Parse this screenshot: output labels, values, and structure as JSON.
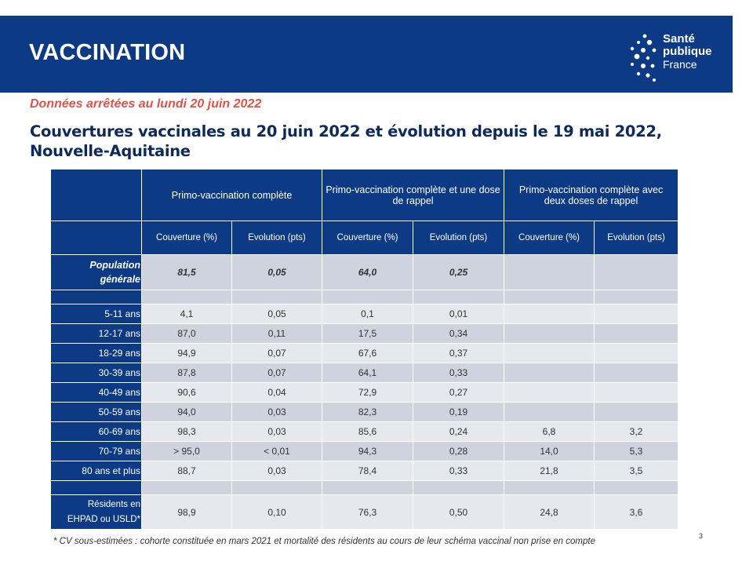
{
  "header": {
    "title": "VACCINATION",
    "logo": {
      "line1": "Santé",
      "line2": "publique",
      "line3": "France",
      "colors": {
        "background": "#0d3a84",
        "text": "#ffffff"
      }
    }
  },
  "date_note": "Données arrêtées au lundi 20 juin 2022",
  "heading_line1": "Couvertures vaccinales au 20 juin 2022 et évolution depuis le 19 mai 2022,",
  "heading_line2": "Nouvelle-Aquitaine",
  "table": {
    "group_headers": [
      "Primo-vaccination complète",
      "Primo-vaccination complète et une dose de rappel",
      "Primo-vaccination complète avec deux doses de rappel"
    ],
    "sub_headers": [
      "Couverture (%)",
      "Evolution (pts)",
      "Couverture (%)",
      "Evolution (pts)",
      "Couverture (%)",
      "Evolution (pts)"
    ],
    "general": {
      "label_line1": "Population",
      "label_line2": "générale",
      "values": [
        "81,5",
        "0,05",
        "64,0",
        "0,25",
        "",
        ""
      ]
    },
    "age_rows": [
      {
        "label": "5-11 ans",
        "values": [
          "4,1",
          "0,05",
          "0,1",
          "0,01",
          "",
          ""
        ]
      },
      {
        "label": "12-17 ans",
        "values": [
          "87,0",
          "0,11",
          "17,5",
          "0,34",
          "",
          ""
        ]
      },
      {
        "label": "18-29 ans",
        "values": [
          "94,9",
          "0,07",
          "67,6",
          "0,37",
          "",
          ""
        ]
      },
      {
        "label": "30-39 ans",
        "values": [
          "87,8",
          "0,07",
          "64,1",
          "0,33",
          "",
          ""
        ]
      },
      {
        "label": "40-49 ans",
        "values": [
          "90,6",
          "0,04",
          "72,9",
          "0,27",
          "",
          ""
        ]
      },
      {
        "label": "50-59 ans",
        "values": [
          "94,0",
          "0,03",
          "82,3",
          "0,19",
          "",
          ""
        ]
      },
      {
        "label": "60-69 ans",
        "values": [
          "98,3",
          "0,03",
          "85,6",
          "0,24",
          "6,8",
          "3,2"
        ]
      },
      {
        "label": "70-79 ans",
        "values": [
          "> 95,0",
          "< 0,01",
          "94,3",
          "0,28",
          "14,0",
          "5,3"
        ]
      },
      {
        "label": "80 ans et plus",
        "values": [
          "88,7",
          "0,03",
          "78,4",
          "0,33",
          "21,8",
          "3,5"
        ]
      }
    ],
    "residents": {
      "label_line1": "Résidents en",
      "label_line2": "EHPAD ou USLD*",
      "values": [
        "98,9",
        "0,10",
        "76,3",
        "0,50",
        "24,8",
        "3,6"
      ]
    }
  },
  "footnote": "* CV sous-estimées : cohorte constituée en mars 2021 et mortalité des résidents au cours de leur schéma vaccinal non prise en compte",
  "page_number": "3"
}
